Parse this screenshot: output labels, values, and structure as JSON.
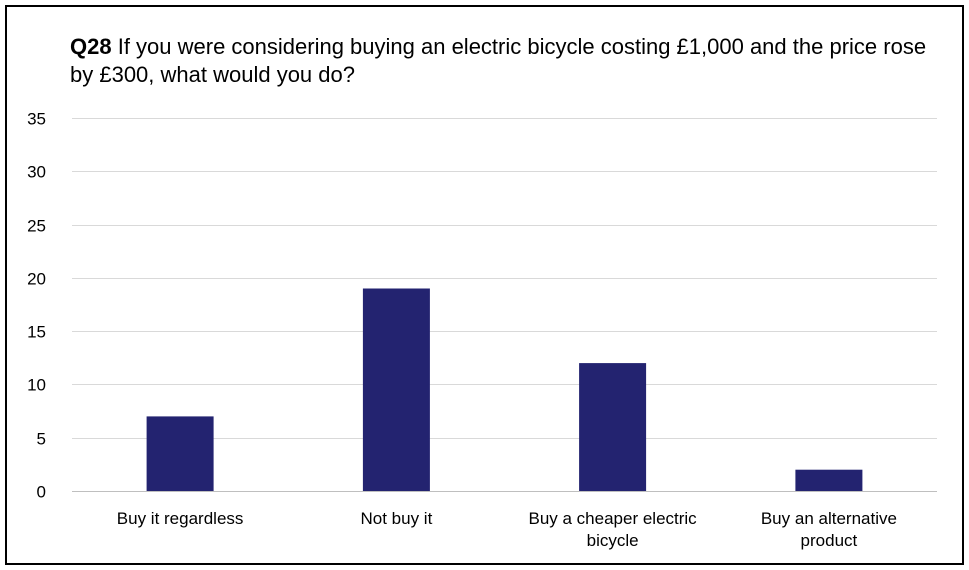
{
  "chart_data": {
    "type": "bar",
    "title": {
      "prefix": "Q28",
      "text": " If you were considering buying an electric bicycle costing £1,000 and the price rose by £300, what would you do?"
    },
    "xlabel": "",
    "ylabel": "",
    "categories": [
      [
        "Buy it regardless"
      ],
      [
        "Not buy it"
      ],
      [
        "Buy a cheaper electric",
        "bicycle"
      ],
      [
        "Buy an alternative",
        "product"
      ]
    ],
    "values": [
      7,
      19,
      12,
      2
    ],
    "ylim": [
      0,
      35
    ],
    "yticks": [
      0,
      5,
      10,
      15,
      20,
      25,
      30,
      35
    ],
    "grid": true,
    "legend": "none",
    "colors": {
      "bar": "#232370",
      "grid": "#d9d9d9",
      "axis": "#bfbfbf"
    }
  }
}
